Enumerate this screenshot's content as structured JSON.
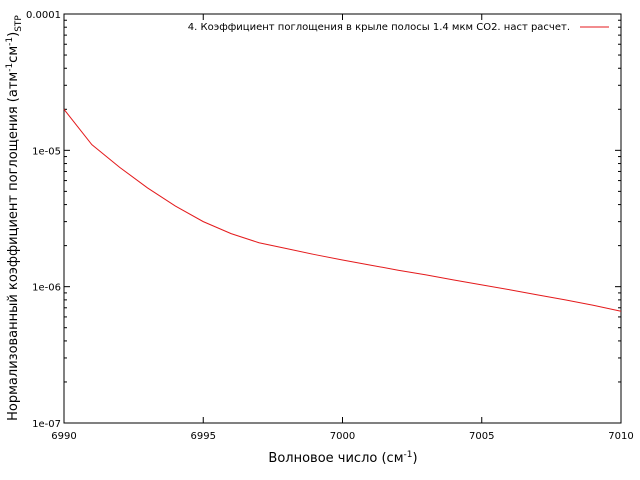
{
  "chart_data": {
    "type": "line",
    "title": "",
    "xlabel": {
      "base": "Волновое число (см",
      "sup": "-1",
      "tail": ")"
    },
    "ylabel": {
      "base": "Нормализованный коэффициент поглощения (атм",
      "sup1": "-1",
      "mid": "см",
      "sup2": "-1",
      "tail": ")",
      "sub": "STP"
    },
    "xlim": [
      6990,
      7010
    ],
    "ylim": [
      1e-07,
      0.0001
    ],
    "yscale": "log",
    "grid": false,
    "legend_position": "top-right",
    "x_ticks": [
      6990,
      6995,
      7000,
      7005,
      7010
    ],
    "x_tick_labels": [
      "6990",
      "6995",
      "7000",
      "7005",
      "7010"
    ],
    "y_ticks": [
      1e-07,
      1e-06,
      1e-05,
      0.0001
    ],
    "y_tick_labels": [
      "1e-07",
      "1e-06",
      "1e-05",
      "0.0001"
    ],
    "series": [
      {
        "name": "4. Коэффициент поглощения в крыле полосы 1.4 мкм CO2. наст расчет.",
        "color": "#e41a1c",
        "x": [
          6990,
          6991,
          6992,
          6993,
          6994,
          6995,
          6996,
          6997,
          6998,
          6999,
          7000,
          7001,
          7002,
          7003,
          7004,
          7005,
          7006,
          7007,
          7008,
          7009,
          7010
        ],
        "y": [
          2e-05,
          1.1e-05,
          7.5e-06,
          5.3e-06,
          3.9e-06,
          3e-06,
          2.45e-06,
          2.1e-06,
          1.9e-06,
          1.72e-06,
          1.57e-06,
          1.44e-06,
          1.32e-06,
          1.22e-06,
          1.12e-06,
          1.03e-06,
          9.5e-07,
          8.7e-07,
          8e-07,
          7.3e-07,
          6.6e-07
        ]
      }
    ]
  }
}
